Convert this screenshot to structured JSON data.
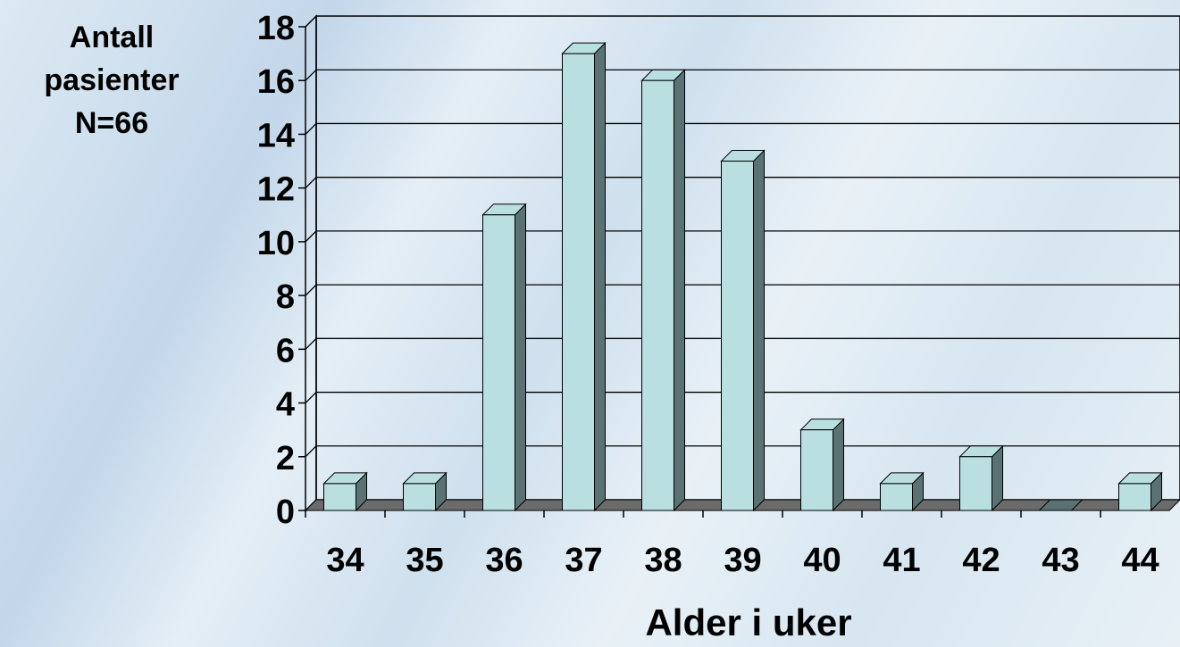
{
  "chart_data": {
    "type": "bar",
    "categories": [
      "34",
      "35",
      "36",
      "37",
      "38",
      "39",
      "40",
      "41",
      "42",
      "43",
      "44"
    ],
    "values": [
      1,
      1,
      11,
      17,
      16,
      13,
      3,
      1,
      2,
      0,
      1
    ],
    "ylabel_lines": [
      "Antall",
      "pasienter",
      "N=66"
    ],
    "xlabel": "Alder i uker",
    "ylim": [
      0,
      18
    ],
    "ytick_step": 2,
    "grid": true,
    "bar_color": "#b9dfe1",
    "bar_side_color": "#5a7274",
    "floor_color": "#6b6b6b"
  }
}
